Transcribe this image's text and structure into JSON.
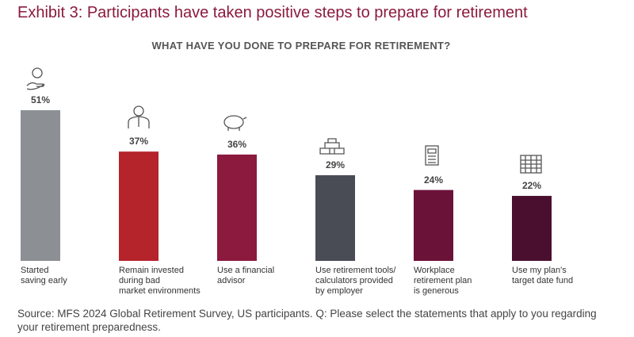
{
  "chart_data": {
    "type": "bar",
    "title": "Exhibit 3: Participants have taken positive steps to prepare for retirement",
    "subtitle": "WHAT HAVE YOU DONE TO PREPARE FOR RETIREMENT?",
    "categories": [
      "Started\nsaving early",
      "Remain invested\nduring bad\nmarket environments",
      "Use a financial\nadvisor",
      "Use retirement tools/\ncalculators provided\nby employer",
      "Workplace\nretirement plan\nis generous",
      "Use my plan's\ntarget date fund"
    ],
    "values": [
      51,
      37,
      36,
      29,
      24,
      22
    ],
    "value_labels": [
      "51%",
      "37%",
      "36%",
      "29%",
      "24%",
      "22%"
    ],
    "colors": [
      "#8c8f93",
      "#b5232b",
      "#8b1a3e",
      "#4a4c55",
      "#6b1238",
      "#4a0f2e"
    ],
    "source": "Source: MFS 2024 Global Retirement Survey, US participants. Q: Please select the statements that apply to you regarding your retirement preparedness."
  }
}
